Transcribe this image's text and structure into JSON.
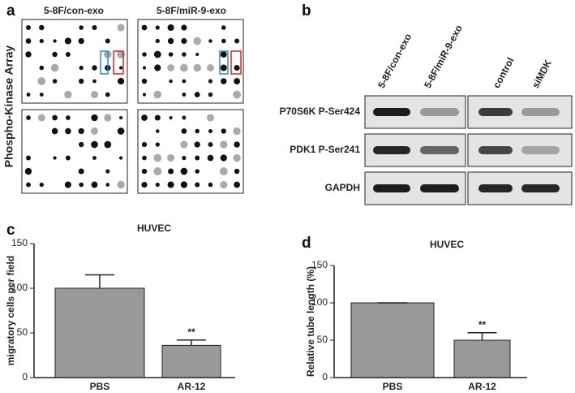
{
  "panels": {
    "a": {
      "label": "a",
      "columns": [
        "5-8F/con-exo",
        "5-8F/miR-9-exo"
      ],
      "ylabel": "Phospho-Kinase Array"
    },
    "b": {
      "label": "b",
      "lanes": [
        "5-8F/con-exo",
        "5-8F/miR-9-exo",
        "control",
        "siMDK"
      ],
      "rows": [
        {
          "label": "P70S6K P-Ser424",
          "color": "#2a8bc4"
        },
        {
          "label": "PDK1 P-Ser241",
          "color": "#e0211b"
        },
        {
          "label": "GAPDH",
          "color": "#111111"
        }
      ]
    }
  },
  "chart_data": [
    {
      "type": "bar",
      "panel_label": "c",
      "title": "HUVEC",
      "ylabel": "migratory cells per field",
      "categories": [
        "PBS",
        "AR-12"
      ],
      "values": [
        100,
        36
      ],
      "errors": [
        15,
        6
      ],
      "bar_annotations": [
        null,
        "**"
      ],
      "color": "#999999",
      "ylim": [
        0,
        150
      ],
      "yticks": [
        0,
        50,
        100,
        150
      ]
    },
    {
      "type": "bar",
      "panel_label": "d",
      "title": "HUVEC",
      "ylabel": "Relative tube length (%)",
      "categories": [
        "PBS",
        "AR-12"
      ],
      "values": [
        100,
        50
      ],
      "errors": [
        0,
        10
      ],
      "bar_annotations": [
        null,
        "**"
      ],
      "color": "#999999",
      "ylim": [
        0,
        150
      ],
      "yticks": [
        0,
        50,
        100,
        150
      ]
    }
  ]
}
